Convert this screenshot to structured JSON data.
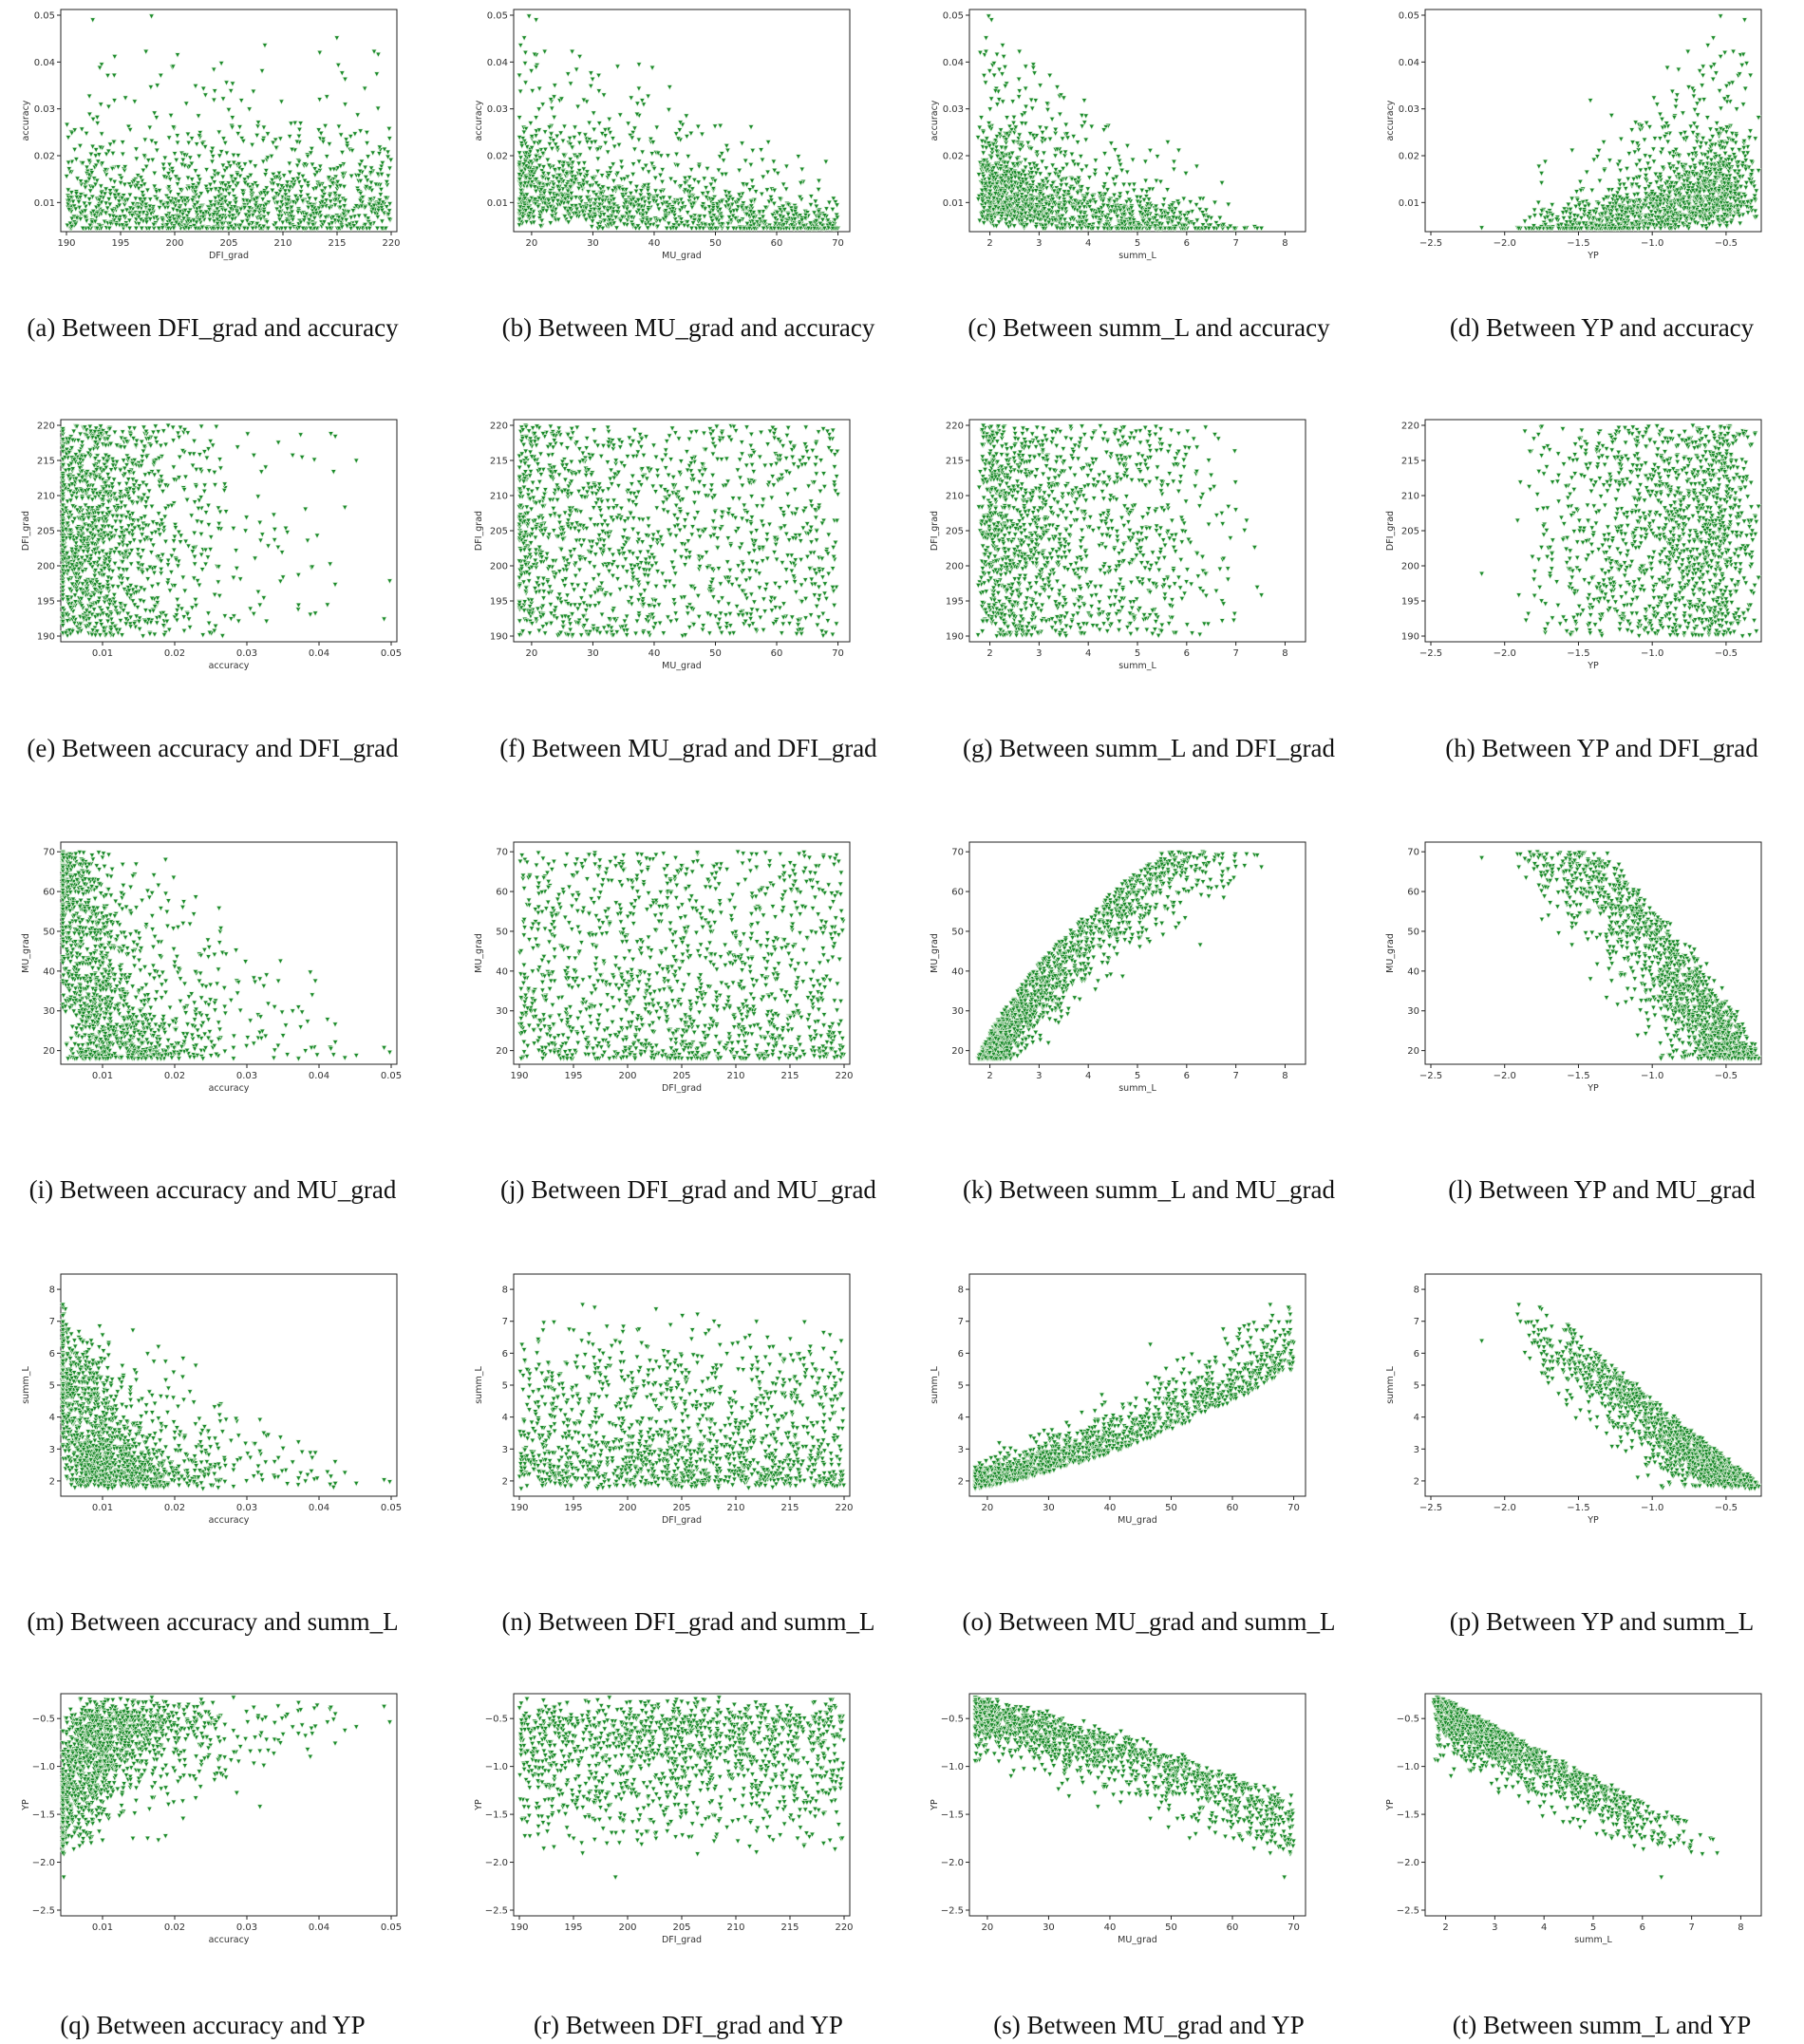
{
  "colors": {
    "marker": "#1a8a2a",
    "marker_edge": "#d8ecd6",
    "axis": "#222222"
  },
  "variables": {
    "accuracy": {
      "range": [
        0.005,
        0.05
      ],
      "ticks": [
        0.01,
        0.02,
        0.03,
        0.04,
        0.05
      ],
      "tick_labels": [
        "0.01",
        "0.02",
        "0.03",
        "0.04",
        "0.05"
      ]
    },
    "DFI_grad": {
      "range": [
        190,
        220
      ],
      "ticks": [
        190,
        195,
        200,
        205,
        210,
        215,
        220
      ],
      "tick_labels": [
        "190",
        "195",
        "200",
        "205",
        "210",
        "215",
        "220"
      ]
    },
    "MU_grad": {
      "range": [
        18,
        71
      ],
      "ticks": [
        20,
        30,
        40,
        50,
        60,
        70
      ],
      "tick_labels": [
        "20",
        "30",
        "40",
        "50",
        "60",
        "70"
      ]
    },
    "summ_L": {
      "range": [
        1.7,
        8.3
      ],
      "ticks": [
        2,
        3,
        4,
        5,
        6,
        7,
        8
      ],
      "tick_labels": [
        "2",
        "3",
        "4",
        "5",
        "6",
        "7",
        "8"
      ]
    },
    "YP": {
      "range": [
        -2.5,
        -0.3
      ],
      "ticks": [
        -2.5,
        -2.0,
        -1.5,
        -1.0,
        -0.5
      ],
      "tick_labels": [
        "−2.5",
        "−2.0",
        "−1.5",
        "−1.0",
        "−0.5"
      ]
    }
  },
  "chart_data": [
    {
      "type": "scatter",
      "x_var": "DFI_grad",
      "y_var": "accuracy",
      "xlabel": "DFI_grad",
      "ylabel": "accuracy",
      "caption": "(a) Between DFI_grad and accuracy"
    },
    {
      "type": "scatter",
      "x_var": "MU_grad",
      "y_var": "accuracy",
      "xlabel": "MU_grad",
      "ylabel": "accuracy",
      "caption": "(b) Between MU_grad and accuracy"
    },
    {
      "type": "scatter",
      "x_var": "summ_L",
      "y_var": "accuracy",
      "xlabel": "summ_L",
      "ylabel": "accuracy",
      "caption": "(c) Between summ_L and accuracy"
    },
    {
      "type": "scatter",
      "x_var": "YP",
      "y_var": "accuracy",
      "xlabel": "YP",
      "ylabel": "accuracy",
      "caption": "(d) Between YP and accuracy"
    },
    {
      "type": "scatter",
      "x_var": "accuracy",
      "y_var": "DFI_grad",
      "xlabel": "accuracy",
      "ylabel": "DFI_grad",
      "caption": "(e) Between accuracy and DFI_grad"
    },
    {
      "type": "scatter",
      "x_var": "MU_grad",
      "y_var": "DFI_grad",
      "xlabel": "MU_grad",
      "ylabel": "DFI_grad",
      "caption": "(f) Between MU_grad and DFI_grad"
    },
    {
      "type": "scatter",
      "x_var": "summ_L",
      "y_var": "DFI_grad",
      "xlabel": "summ_L",
      "ylabel": "DFI_grad",
      "caption": "(g) Between summ_L and DFI_grad"
    },
    {
      "type": "scatter",
      "x_var": "YP",
      "y_var": "DFI_grad",
      "xlabel": "YP",
      "ylabel": "DFI_grad",
      "caption": "(h) Between YP and DFI_grad"
    },
    {
      "type": "scatter",
      "x_var": "accuracy",
      "y_var": "MU_grad",
      "xlabel": "accuracy",
      "ylabel": "MU_grad",
      "caption": "(i) Between accuracy and MU_grad"
    },
    {
      "type": "scatter",
      "x_var": "DFI_grad",
      "y_var": "MU_grad",
      "xlabel": "DFI_grad",
      "ylabel": "MU_grad",
      "caption": "(j) Between DFI_grad and MU_grad"
    },
    {
      "type": "scatter",
      "x_var": "summ_L",
      "y_var": "MU_grad",
      "xlabel": "summ_L",
      "ylabel": "MU_grad",
      "caption": "(k) Between summ_L and MU_grad"
    },
    {
      "type": "scatter",
      "x_var": "YP",
      "y_var": "MU_grad",
      "xlabel": "YP",
      "ylabel": "MU_grad",
      "caption": "(l) Between YP and MU_grad"
    },
    {
      "type": "scatter",
      "x_var": "accuracy",
      "y_var": "summ_L",
      "xlabel": "accuracy",
      "ylabel": "summ_L",
      "caption": "(m) Between accuracy and summ_L"
    },
    {
      "type": "scatter",
      "x_var": "DFI_grad",
      "y_var": "summ_L",
      "xlabel": "DFI_grad",
      "ylabel": "summ_L",
      "caption": "(n) Between DFI_grad and summ_L"
    },
    {
      "type": "scatter",
      "x_var": "MU_grad",
      "y_var": "summ_L",
      "xlabel": "MU_grad",
      "ylabel": "summ_L",
      "caption": "(o) Between MU_grad and summ_L"
    },
    {
      "type": "scatter",
      "x_var": "YP",
      "y_var": "summ_L",
      "xlabel": "YP",
      "ylabel": "summ_L",
      "caption": "(p) Between YP and summ_L"
    },
    {
      "type": "scatter",
      "x_var": "accuracy",
      "y_var": "YP",
      "xlabel": "accuracy",
      "ylabel": "YP",
      "caption": "(q) Between accuracy and YP"
    },
    {
      "type": "scatter",
      "x_var": "DFI_grad",
      "y_var": "YP",
      "xlabel": "DFI_grad",
      "ylabel": "YP",
      "caption": "(r) Between DFI_grad and YP"
    },
    {
      "type": "scatter",
      "x_var": "MU_grad",
      "y_var": "YP",
      "xlabel": "MU_grad",
      "ylabel": "YP",
      "caption": "(s) Between MU_grad and YP"
    },
    {
      "type": "scatter",
      "x_var": "summ_L",
      "y_var": "YP",
      "xlabel": "summ_L",
      "ylabel": "YP",
      "caption": "(t) Between summ_L and YP"
    }
  ]
}
